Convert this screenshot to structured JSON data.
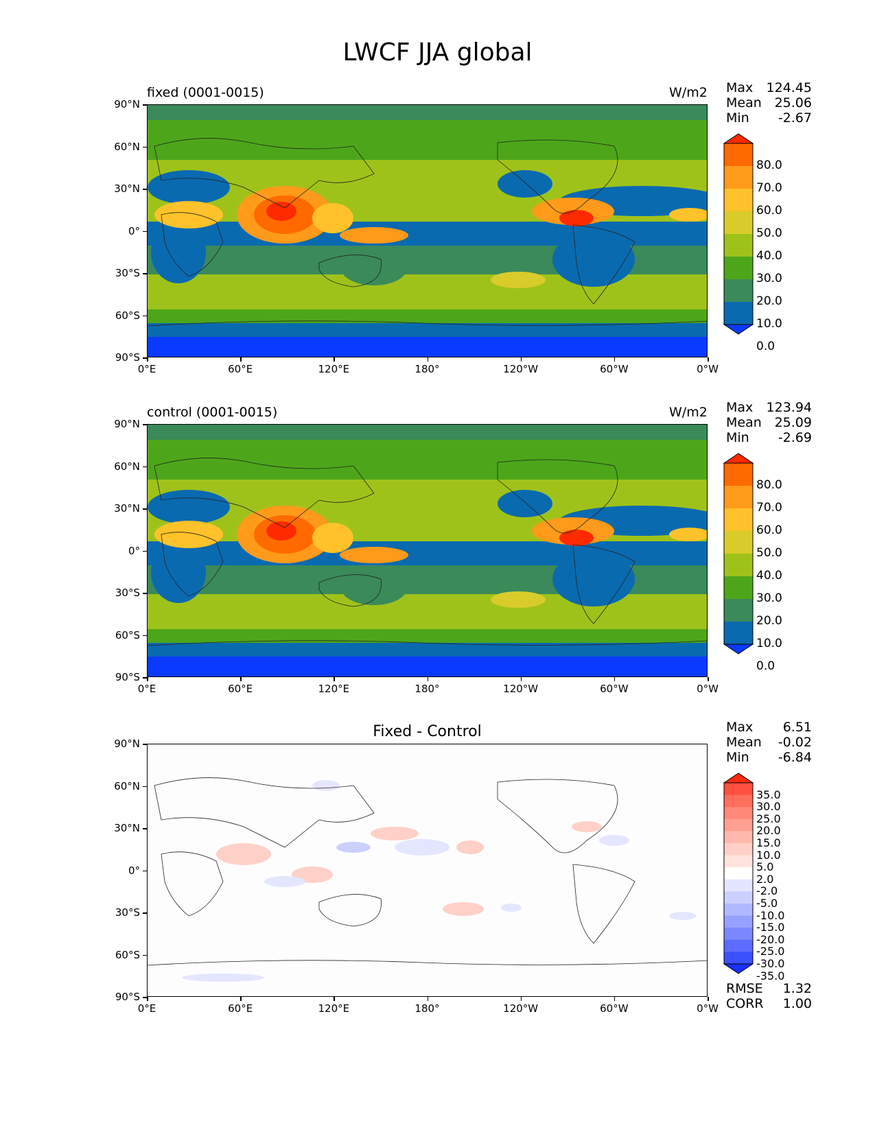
{
  "figure_title": "LWCF JJA global",
  "axes": {
    "lat_labels": [
      "90°N",
      "60°N",
      "30°N",
      "0°",
      "30°S",
      "60°S",
      "90°S"
    ],
    "lon_labels": [
      "0°E",
      "60°E",
      "120°E",
      "180°",
      "120°W",
      "60°W",
      "0°W"
    ]
  },
  "panels": [
    {
      "title": "fixed (0001-0015)",
      "units": "W/m2",
      "stats": {
        "max_label": "Max",
        "max": "124.45",
        "mean_label": "Mean",
        "mean": "25.06",
        "min_label": "Min",
        "min": "-2.67"
      },
      "colorbar": {
        "levels": [
          "80.0",
          "70.0",
          "60.0",
          "50.0",
          "40.0",
          "30.0",
          "20.0",
          "10.0",
          "0.0"
        ],
        "colors": [
          "#ff2a00",
          "#ff6a00",
          "#ff9a1a",
          "#ffc22a",
          "#d9cc2a",
          "#9fc21a",
          "#4da61a",
          "#3a8a5a",
          "#0a6ab0",
          "#0a3aff"
        ]
      }
    },
    {
      "title": "control (0001-0015)",
      "units": "W/m2",
      "stats": {
        "max_label": "Max",
        "max": "123.94",
        "mean_label": "Mean",
        "mean": "25.09",
        "min_label": "Min",
        "min": "-2.69"
      },
      "colorbar": {
        "levels": [
          "80.0",
          "70.0",
          "60.0",
          "50.0",
          "40.0",
          "30.0",
          "20.0",
          "10.0",
          "0.0"
        ],
        "colors": [
          "#ff2a00",
          "#ff6a00",
          "#ff9a1a",
          "#ffc22a",
          "#d9cc2a",
          "#9fc21a",
          "#4da61a",
          "#3a8a5a",
          "#0a6ab0",
          "#0a3aff"
        ]
      }
    },
    {
      "title": "Fixed - Control",
      "units": "",
      "stats": {
        "max_label": "Max",
        "max": "6.51",
        "mean_label": "Mean",
        "mean": "-0.02",
        "min_label": "Min",
        "min": "-6.84"
      },
      "colorbar": {
        "levels": [
          "35.0",
          "30.0",
          "25.0",
          "20.0",
          "15.0",
          "10.0",
          "5.0",
          "2.0",
          "-2.0",
          "-5.0",
          "-10.0",
          "-15.0",
          "-20.0",
          "-25.0",
          "-30.0",
          "-35.0"
        ],
        "colors": [
          "#ff2a10",
          "#ff5040",
          "#ff6e5c",
          "#ff8878",
          "#ffa092",
          "#ffb8ac",
          "#ffd0c8",
          "#ffe4de",
          "#ffffff",
          "#e4e6ff",
          "#ccd0ff",
          "#b0b8ff",
          "#96a0ff",
          "#7a88ff",
          "#5c6cff",
          "#3a50ff",
          "#1a30ff"
        ]
      },
      "rmse_label": "RMSE",
      "rmse": "1.32",
      "corr_label": "CORR",
      "corr": "1.00"
    }
  ]
}
